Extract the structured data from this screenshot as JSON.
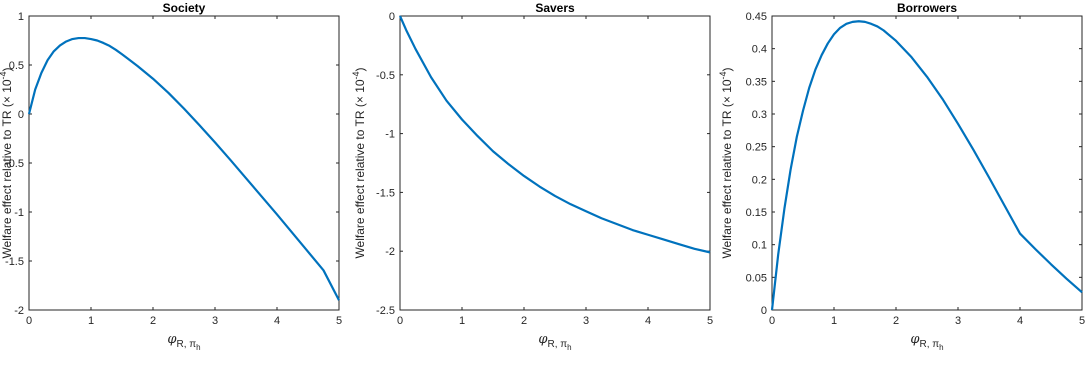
{
  "chart_data": [
    {
      "type": "line",
      "title": "Society",
      "xlabel_base": "φ",
      "xlabel_sub": "R, π",
      "xlabel_subsub": "h",
      "ylabel": "Welfare effect relative to TR (× 10",
      "ylabel_exp": "-4",
      "ylabel_close": ")",
      "xlim": [
        0,
        5
      ],
      "ylim": [
        -2,
        1
      ],
      "xticks": [
        0,
        1,
        2,
        3,
        4,
        5
      ],
      "yticks": [
        -2,
        -1.5,
        -1,
        -0.5,
        0,
        0.5,
        1
      ],
      "color": "#0072BD",
      "series": [
        {
          "x": [
            0,
            0.1,
            0.2,
            0.3,
            0.4,
            0.5,
            0.6,
            0.7,
            0.8,
            0.9,
            1.0,
            1.1,
            1.2,
            1.3,
            1.4,
            1.5,
            1.75,
            2.0,
            2.25,
            2.5,
            2.75,
            3.0,
            3.25,
            3.5,
            3.75,
            4.0,
            4.25,
            4.5,
            4.75,
            5.0
          ],
          "y": [
            0,
            0.25,
            0.42,
            0.55,
            0.64,
            0.7,
            0.74,
            0.765,
            0.775,
            0.775,
            0.765,
            0.75,
            0.725,
            0.695,
            0.655,
            0.61,
            0.49,
            0.36,
            0.215,
            0.055,
            -0.115,
            -0.29,
            -0.47,
            -0.655,
            -0.84,
            -1.025,
            -1.215,
            -1.405,
            -1.595,
            -1.9
          ]
        }
      ]
    },
    {
      "type": "line",
      "title": "Savers",
      "xlabel_base": "φ",
      "xlabel_sub": "R, π",
      "xlabel_subsub": "h",
      "ylabel": "Welfare effect relative to TR (× 10",
      "ylabel_exp": "-4",
      "ylabel_close": ")",
      "xlim": [
        0,
        5
      ],
      "ylim": [
        -2.5,
        0
      ],
      "xticks": [
        0,
        1,
        2,
        3,
        4,
        5
      ],
      "yticks": [
        -2.5,
        -2,
        -1.5,
        -1,
        -0.5,
        0
      ],
      "color": "#0072BD",
      "series": [
        {
          "x": [
            0,
            0.1,
            0.25,
            0.5,
            0.75,
            1.0,
            1.25,
            1.5,
            1.75,
            2.0,
            2.25,
            2.5,
            2.75,
            3.0,
            3.25,
            3.5,
            3.75,
            4.0,
            4.25,
            4.5,
            4.75,
            5.0
          ],
          "y": [
            0,
            -0.12,
            -0.28,
            -0.52,
            -0.72,
            -0.88,
            -1.02,
            -1.15,
            -1.26,
            -1.36,
            -1.45,
            -1.53,
            -1.6,
            -1.66,
            -1.72,
            -1.77,
            -1.82,
            -1.86,
            -1.9,
            -1.94,
            -1.98,
            -2.01
          ]
        }
      ]
    },
    {
      "type": "line",
      "title": "Borrowers",
      "xlabel_base": "φ",
      "xlabel_sub": "R, π",
      "xlabel_subsub": "h",
      "ylabel": "Welfare effect relative to TR (× 10",
      "ylabel_exp": "-4",
      "ylabel_close": ")",
      "xlim": [
        0,
        5
      ],
      "ylim": [
        0,
        0.45
      ],
      "xticks": [
        0,
        1,
        2,
        3,
        4,
        5
      ],
      "yticks": [
        0,
        0.05,
        0.1,
        0.15,
        0.2,
        0.25,
        0.3,
        0.35,
        0.4,
        0.45
      ],
      "color": "#0072BD",
      "series": [
        {
          "x": [
            0,
            0.1,
            0.2,
            0.3,
            0.4,
            0.5,
            0.6,
            0.7,
            0.8,
            0.9,
            1.0,
            1.1,
            1.2,
            1.3,
            1.4,
            1.5,
            1.6,
            1.7,
            1.8,
            2.0,
            2.25,
            2.5,
            2.75,
            3.0,
            3.25,
            3.5,
            3.75,
            4.0,
            4.25,
            4.5,
            4.75,
            5.0
          ],
          "y": [
            0,
            0.085,
            0.155,
            0.215,
            0.265,
            0.305,
            0.34,
            0.368,
            0.39,
            0.408,
            0.422,
            0.432,
            0.438,
            0.441,
            0.442,
            0.441,
            0.438,
            0.434,
            0.428,
            0.412,
            0.387,
            0.357,
            0.323,
            0.285,
            0.245,
            0.203,
            0.16,
            0.117,
            0.093,
            0.07,
            0.048,
            0.027
          ]
        }
      ]
    }
  ]
}
